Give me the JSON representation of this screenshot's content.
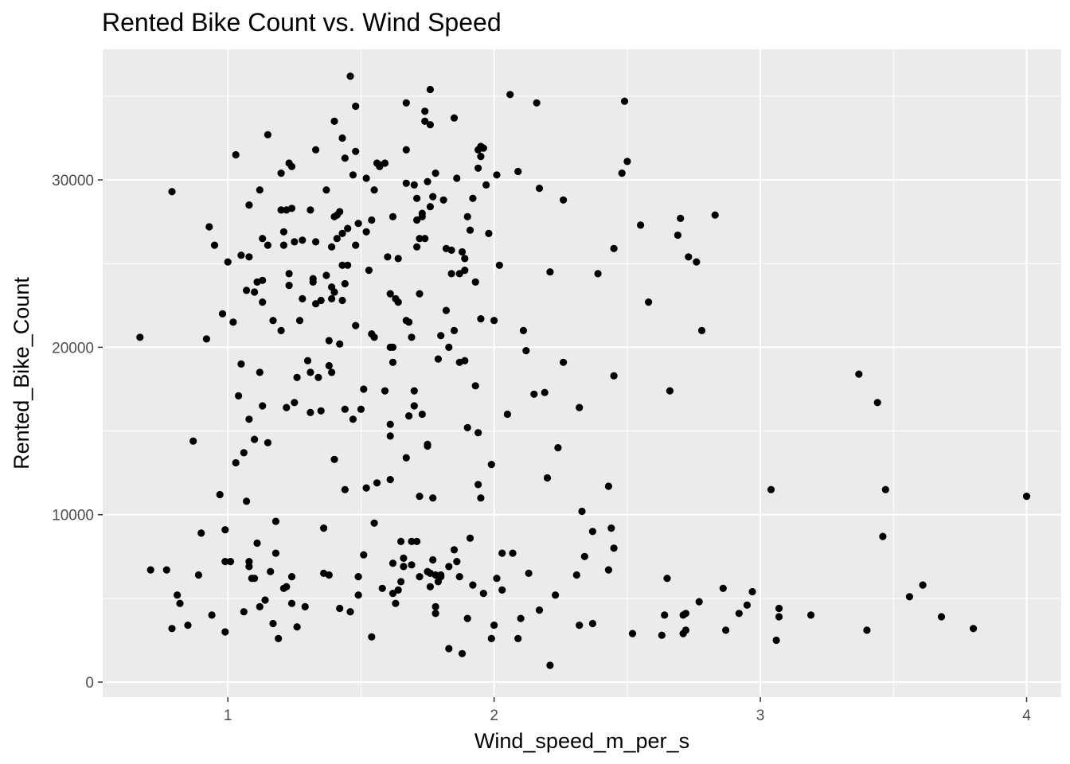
{
  "chart_data": {
    "type": "scatter",
    "title": "Rented Bike Count vs. Wind Speed",
    "xlabel": "Wind_speed_m_per_s",
    "ylabel": "Rented_Bike_Count",
    "xlim": [
      0.53,
      4.13
    ],
    "ylim": [
      -900,
      37800
    ],
    "x_ticks": [
      1,
      2,
      3,
      4
    ],
    "y_ticks": [
      0,
      10000,
      20000,
      30000
    ],
    "x_tick_labels": [
      "1",
      "2",
      "3",
      "4"
    ],
    "y_tick_labels": [
      "0",
      "10000",
      "20000",
      "30000"
    ],
    "grid": true,
    "colors": {
      "panel": "#ebebeb",
      "grid": "#ffffff",
      "point": "#000000"
    },
    "points": [
      [
        0.67,
        20600
      ],
      [
        0.71,
        6700
      ],
      [
        0.77,
        6700
      ],
      [
        0.79,
        3200
      ],
      [
        0.79,
        29300
      ],
      [
        0.81,
        5200
      ],
      [
        0.82,
        4700
      ],
      [
        0.85,
        3400
      ],
      [
        0.87,
        14400
      ],
      [
        0.89,
        6400
      ],
      [
        0.9,
        8900
      ],
      [
        0.92,
        20500
      ],
      [
        0.93,
        27200
      ],
      [
        0.94,
        4000
      ],
      [
        0.95,
        26100
      ],
      [
        0.97,
        11200
      ],
      [
        0.98,
        22000
      ],
      [
        0.99,
        3000
      ],
      [
        0.99,
        7200
      ],
      [
        0.99,
        9100
      ],
      [
        1.0,
        25100
      ],
      [
        1.01,
        7200
      ],
      [
        1.02,
        21500
      ],
      [
        1.03,
        13100
      ],
      [
        1.03,
        31500
      ],
      [
        1.04,
        17100
      ],
      [
        1.05,
        25500
      ],
      [
        1.05,
        19000
      ],
      [
        1.06,
        13700
      ],
      [
        1.06,
        4200
      ],
      [
        1.07,
        10800
      ],
      [
        1.07,
        23400
      ],
      [
        1.08,
        15700
      ],
      [
        1.08,
        6900
      ],
      [
        1.08,
        7200
      ],
      [
        1.08,
        28500
      ],
      [
        1.08,
        25400
      ],
      [
        1.09,
        6200
      ],
      [
        1.1,
        6200
      ],
      [
        1.1,
        23300
      ],
      [
        1.1,
        14500
      ],
      [
        1.11,
        23900
      ],
      [
        1.11,
        8300
      ],
      [
        1.12,
        4500
      ],
      [
        1.12,
        18500
      ],
      [
        1.12,
        29400
      ],
      [
        1.13,
        22700
      ],
      [
        1.13,
        16500
      ],
      [
        1.13,
        24000
      ],
      [
        1.13,
        26500
      ],
      [
        1.14,
        4900
      ],
      [
        1.15,
        32700
      ],
      [
        1.15,
        26100
      ],
      [
        1.15,
        14300
      ],
      [
        1.16,
        6600
      ],
      [
        1.17,
        21600
      ],
      [
        1.17,
        3500
      ],
      [
        1.18,
        9600
      ],
      [
        1.18,
        7700
      ],
      [
        1.19,
        2600
      ],
      [
        1.2,
        21000
      ],
      [
        1.2,
        30400
      ],
      [
        1.2,
        28200
      ],
      [
        1.21,
        26900
      ],
      [
        1.21,
        5600
      ],
      [
        1.21,
        26100
      ],
      [
        1.22,
        28200
      ],
      [
        1.22,
        16400
      ],
      [
        1.22,
        5700
      ],
      [
        1.23,
        24400
      ],
      [
        1.23,
        23700
      ],
      [
        1.23,
        31000
      ],
      [
        1.24,
        6300
      ],
      [
        1.24,
        30800
      ],
      [
        1.24,
        4700
      ],
      [
        1.24,
        28300
      ],
      [
        1.25,
        16700
      ],
      [
        1.25,
        26300
      ],
      [
        1.26,
        18200
      ],
      [
        1.26,
        3300
      ],
      [
        1.27,
        21600
      ],
      [
        1.28,
        26400
      ],
      [
        1.28,
        22900
      ],
      [
        1.29,
        4500
      ],
      [
        1.3,
        19200
      ],
      [
        1.31,
        28200
      ],
      [
        1.31,
        18500
      ],
      [
        1.31,
        16100
      ],
      [
        1.32,
        23900
      ],
      [
        1.32,
        24100
      ],
      [
        1.33,
        31800
      ],
      [
        1.33,
        26300
      ],
      [
        1.33,
        22600
      ],
      [
        1.34,
        18200
      ],
      [
        1.35,
        16200
      ],
      [
        1.35,
        22800
      ],
      [
        1.36,
        6500
      ],
      [
        1.36,
        9200
      ],
      [
        1.37,
        24300
      ],
      [
        1.37,
        29400
      ],
      [
        1.38,
        6400
      ],
      [
        1.38,
        18900
      ],
      [
        1.38,
        20400
      ],
      [
        1.39,
        26000
      ],
      [
        1.39,
        23600
      ],
      [
        1.39,
        22900
      ],
      [
        1.39,
        18500
      ],
      [
        1.4,
        27800
      ],
      [
        1.4,
        23300
      ],
      [
        1.4,
        13300
      ],
      [
        1.4,
        33500
      ],
      [
        1.41,
        26500
      ],
      [
        1.41,
        27900
      ],
      [
        1.42,
        20200
      ],
      [
        1.42,
        4400
      ],
      [
        1.42,
        28100
      ],
      [
        1.43,
        32500
      ],
      [
        1.43,
        26800
      ],
      [
        1.43,
        24900
      ],
      [
        1.43,
        22800
      ],
      [
        1.44,
        11500
      ],
      [
        1.44,
        23800
      ],
      [
        1.44,
        16300
      ],
      [
        1.44,
        31300
      ],
      [
        1.45,
        24900
      ],
      [
        1.45,
        27100
      ],
      [
        1.46,
        4200
      ],
      [
        1.46,
        36200
      ],
      [
        1.47,
        15700
      ],
      [
        1.47,
        30300
      ],
      [
        1.48,
        21300
      ],
      [
        1.48,
        34400
      ],
      [
        1.48,
        26100
      ],
      [
        1.48,
        31700
      ],
      [
        1.49,
        27400
      ],
      [
        1.49,
        6300
      ],
      [
        1.49,
        5200
      ],
      [
        1.5,
        16300
      ],
      [
        1.51,
        17500
      ],
      [
        1.51,
        7600
      ],
      [
        1.52,
        11600
      ],
      [
        1.52,
        26900
      ],
      [
        1.52,
        30100
      ],
      [
        1.53,
        24600
      ],
      [
        1.54,
        20800
      ],
      [
        1.54,
        2700
      ],
      [
        1.54,
        27600
      ],
      [
        1.55,
        9500
      ],
      [
        1.55,
        29400
      ],
      [
        1.55,
        20600
      ],
      [
        1.56,
        11900
      ],
      [
        1.56,
        31000
      ],
      [
        1.57,
        30900
      ],
      [
        1.57,
        30800
      ],
      [
        1.58,
        5600
      ],
      [
        1.59,
        17400
      ],
      [
        1.59,
        31000
      ],
      [
        1.6,
        25400
      ],
      [
        1.61,
        12100
      ],
      [
        1.61,
        23200
      ],
      [
        1.61,
        20000
      ],
      [
        1.61,
        14700
      ],
      [
        1.61,
        15400
      ],
      [
        1.62,
        20000
      ],
      [
        1.62,
        19100
      ],
      [
        1.62,
        27800
      ],
      [
        1.62,
        5300
      ],
      [
        1.62,
        7100
      ],
      [
        1.63,
        4700
      ],
      [
        1.63,
        22900
      ],
      [
        1.64,
        25300
      ],
      [
        1.64,
        22700
      ],
      [
        1.64,
        5500
      ],
      [
        1.65,
        8400
      ],
      [
        1.65,
        6000
      ],
      [
        1.66,
        7400
      ],
      [
        1.66,
        6900
      ],
      [
        1.67,
        31800
      ],
      [
        1.67,
        34600
      ],
      [
        1.67,
        29800
      ],
      [
        1.67,
        21600
      ],
      [
        1.67,
        13400
      ],
      [
        1.68,
        15900
      ],
      [
        1.68,
        21500
      ],
      [
        1.69,
        20600
      ],
      [
        1.69,
        8400
      ],
      [
        1.69,
        7000
      ],
      [
        1.7,
        29700
      ],
      [
        1.7,
        17400
      ],
      [
        1.7,
        16500
      ],
      [
        1.71,
        28900
      ],
      [
        1.71,
        26000
      ],
      [
        1.71,
        27600
      ],
      [
        1.71,
        8400
      ],
      [
        1.72,
        26500
      ],
      [
        1.72,
        23200
      ],
      [
        1.72,
        11100
      ],
      [
        1.72,
        6300
      ],
      [
        1.73,
        27800
      ],
      [
        1.73,
        28000
      ],
      [
        1.73,
        16000
      ],
      [
        1.74,
        34100
      ],
      [
        1.74,
        33500
      ],
      [
        1.74,
        26500
      ],
      [
        1.75,
        29900
      ],
      [
        1.75,
        14200
      ],
      [
        1.75,
        14100
      ],
      [
        1.75,
        6600
      ],
      [
        1.76,
        33300
      ],
      [
        1.76,
        35400
      ],
      [
        1.76,
        28400
      ],
      [
        1.76,
        6500
      ],
      [
        1.76,
        5700
      ],
      [
        1.77,
        7300
      ],
      [
        1.77,
        11000
      ],
      [
        1.77,
        29000
      ],
      [
        1.78,
        4500
      ],
      [
        1.78,
        4100
      ],
      [
        1.78,
        6400
      ],
      [
        1.78,
        30400
      ],
      [
        1.79,
        19300
      ],
      [
        1.79,
        6000
      ],
      [
        1.8,
        20700
      ],
      [
        1.8,
        6300
      ],
      [
        1.8,
        6400
      ],
      [
        1.81,
        28800
      ],
      [
        1.82,
        25900
      ],
      [
        1.82,
        22200
      ],
      [
        1.83,
        2000
      ],
      [
        1.83,
        6900
      ],
      [
        1.83,
        20000
      ],
      [
        1.84,
        24400
      ],
      [
        1.84,
        25800
      ],
      [
        1.85,
        21000
      ],
      [
        1.85,
        7900
      ],
      [
        1.85,
        33700
      ],
      [
        1.86,
        30100
      ],
      [
        1.86,
        7200
      ],
      [
        1.87,
        19100
      ],
      [
        1.87,
        24400
      ],
      [
        1.87,
        6300
      ],
      [
        1.88,
        25700
      ],
      [
        1.88,
        1700
      ],
      [
        1.89,
        24600
      ],
      [
        1.89,
        19200
      ],
      [
        1.89,
        25300
      ],
      [
        1.9,
        27800
      ],
      [
        1.9,
        15200
      ],
      [
        1.9,
        3800
      ],
      [
        1.91,
        8600
      ],
      [
        1.91,
        27000
      ],
      [
        1.92,
        28900
      ],
      [
        1.92,
        5800
      ],
      [
        1.93,
        23900
      ],
      [
        1.93,
        17700
      ],
      [
        1.94,
        14900
      ],
      [
        1.94,
        30700
      ],
      [
        1.94,
        31800
      ],
      [
        1.94,
        11800
      ],
      [
        1.95,
        21700
      ],
      [
        1.95,
        11000
      ],
      [
        1.95,
        32000
      ],
      [
        1.95,
        31400
      ],
      [
        1.96,
        31900
      ],
      [
        1.96,
        5300
      ],
      [
        1.97,
        29700
      ],
      [
        1.98,
        26800
      ],
      [
        1.99,
        13000
      ],
      [
        1.99,
        2600
      ],
      [
        2.0,
        21600
      ],
      [
        2.0,
        3400
      ],
      [
        2.01,
        6200
      ],
      [
        2.01,
        30300
      ],
      [
        2.02,
        24900
      ],
      [
        2.03,
        7700
      ],
      [
        2.03,
        5500
      ],
      [
        2.05,
        16000
      ],
      [
        2.06,
        35100
      ],
      [
        2.07,
        7700
      ],
      [
        2.09,
        30500
      ],
      [
        2.09,
        2600
      ],
      [
        2.1,
        3800
      ],
      [
        2.11,
        21000
      ],
      [
        2.12,
        19800
      ],
      [
        2.13,
        6500
      ],
      [
        2.15,
        17200
      ],
      [
        2.16,
        34600
      ],
      [
        2.17,
        29500
      ],
      [
        2.17,
        4300
      ],
      [
        2.19,
        17300
      ],
      [
        2.2,
        12200
      ],
      [
        2.21,
        24500
      ],
      [
        2.21,
        1000
      ],
      [
        2.23,
        5200
      ],
      [
        2.24,
        14000
      ],
      [
        2.26,
        19100
      ],
      [
        2.26,
        28800
      ],
      [
        2.31,
        6400
      ],
      [
        2.32,
        16400
      ],
      [
        2.32,
        3400
      ],
      [
        2.33,
        10200
      ],
      [
        2.34,
        7500
      ],
      [
        2.37,
        9000
      ],
      [
        2.37,
        3500
      ],
      [
        2.39,
        24400
      ],
      [
        2.43,
        11700
      ],
      [
        2.43,
        6700
      ],
      [
        2.44,
        9200
      ],
      [
        2.45,
        8000
      ],
      [
        2.45,
        18300
      ],
      [
        2.45,
        25900
      ],
      [
        2.48,
        30400
      ],
      [
        2.49,
        34700
      ],
      [
        2.5,
        31100
      ],
      [
        2.52,
        2900
      ],
      [
        2.55,
        27300
      ],
      [
        2.58,
        22700
      ],
      [
        2.63,
        2800
      ],
      [
        2.64,
        4000
      ],
      [
        2.65,
        6200
      ],
      [
        2.66,
        17400
      ],
      [
        2.69,
        26700
      ],
      [
        2.7,
        27700
      ],
      [
        2.71,
        4000
      ],
      [
        2.71,
        2900
      ],
      [
        2.72,
        3100
      ],
      [
        2.72,
        4100
      ],
      [
        2.73,
        25400
      ],
      [
        2.76,
        25100
      ],
      [
        2.77,
        4800
      ],
      [
        2.78,
        21000
      ],
      [
        2.83,
        27900
      ],
      [
        2.86,
        5600
      ],
      [
        2.87,
        3100
      ],
      [
        2.92,
        4100
      ],
      [
        2.95,
        4600
      ],
      [
        2.97,
        5400
      ],
      [
        3.04,
        11500
      ],
      [
        3.06,
        2500
      ],
      [
        3.07,
        3900
      ],
      [
        3.07,
        4400
      ],
      [
        3.19,
        4000
      ],
      [
        3.37,
        18400
      ],
      [
        3.4,
        3100
      ],
      [
        3.44,
        16700
      ],
      [
        3.46,
        8700
      ],
      [
        3.47,
        11500
      ],
      [
        3.56,
        5100
      ],
      [
        3.61,
        5800
      ],
      [
        3.68,
        3900
      ],
      [
        3.8,
        3200
      ],
      [
        4.0,
        11100
      ]
    ]
  }
}
